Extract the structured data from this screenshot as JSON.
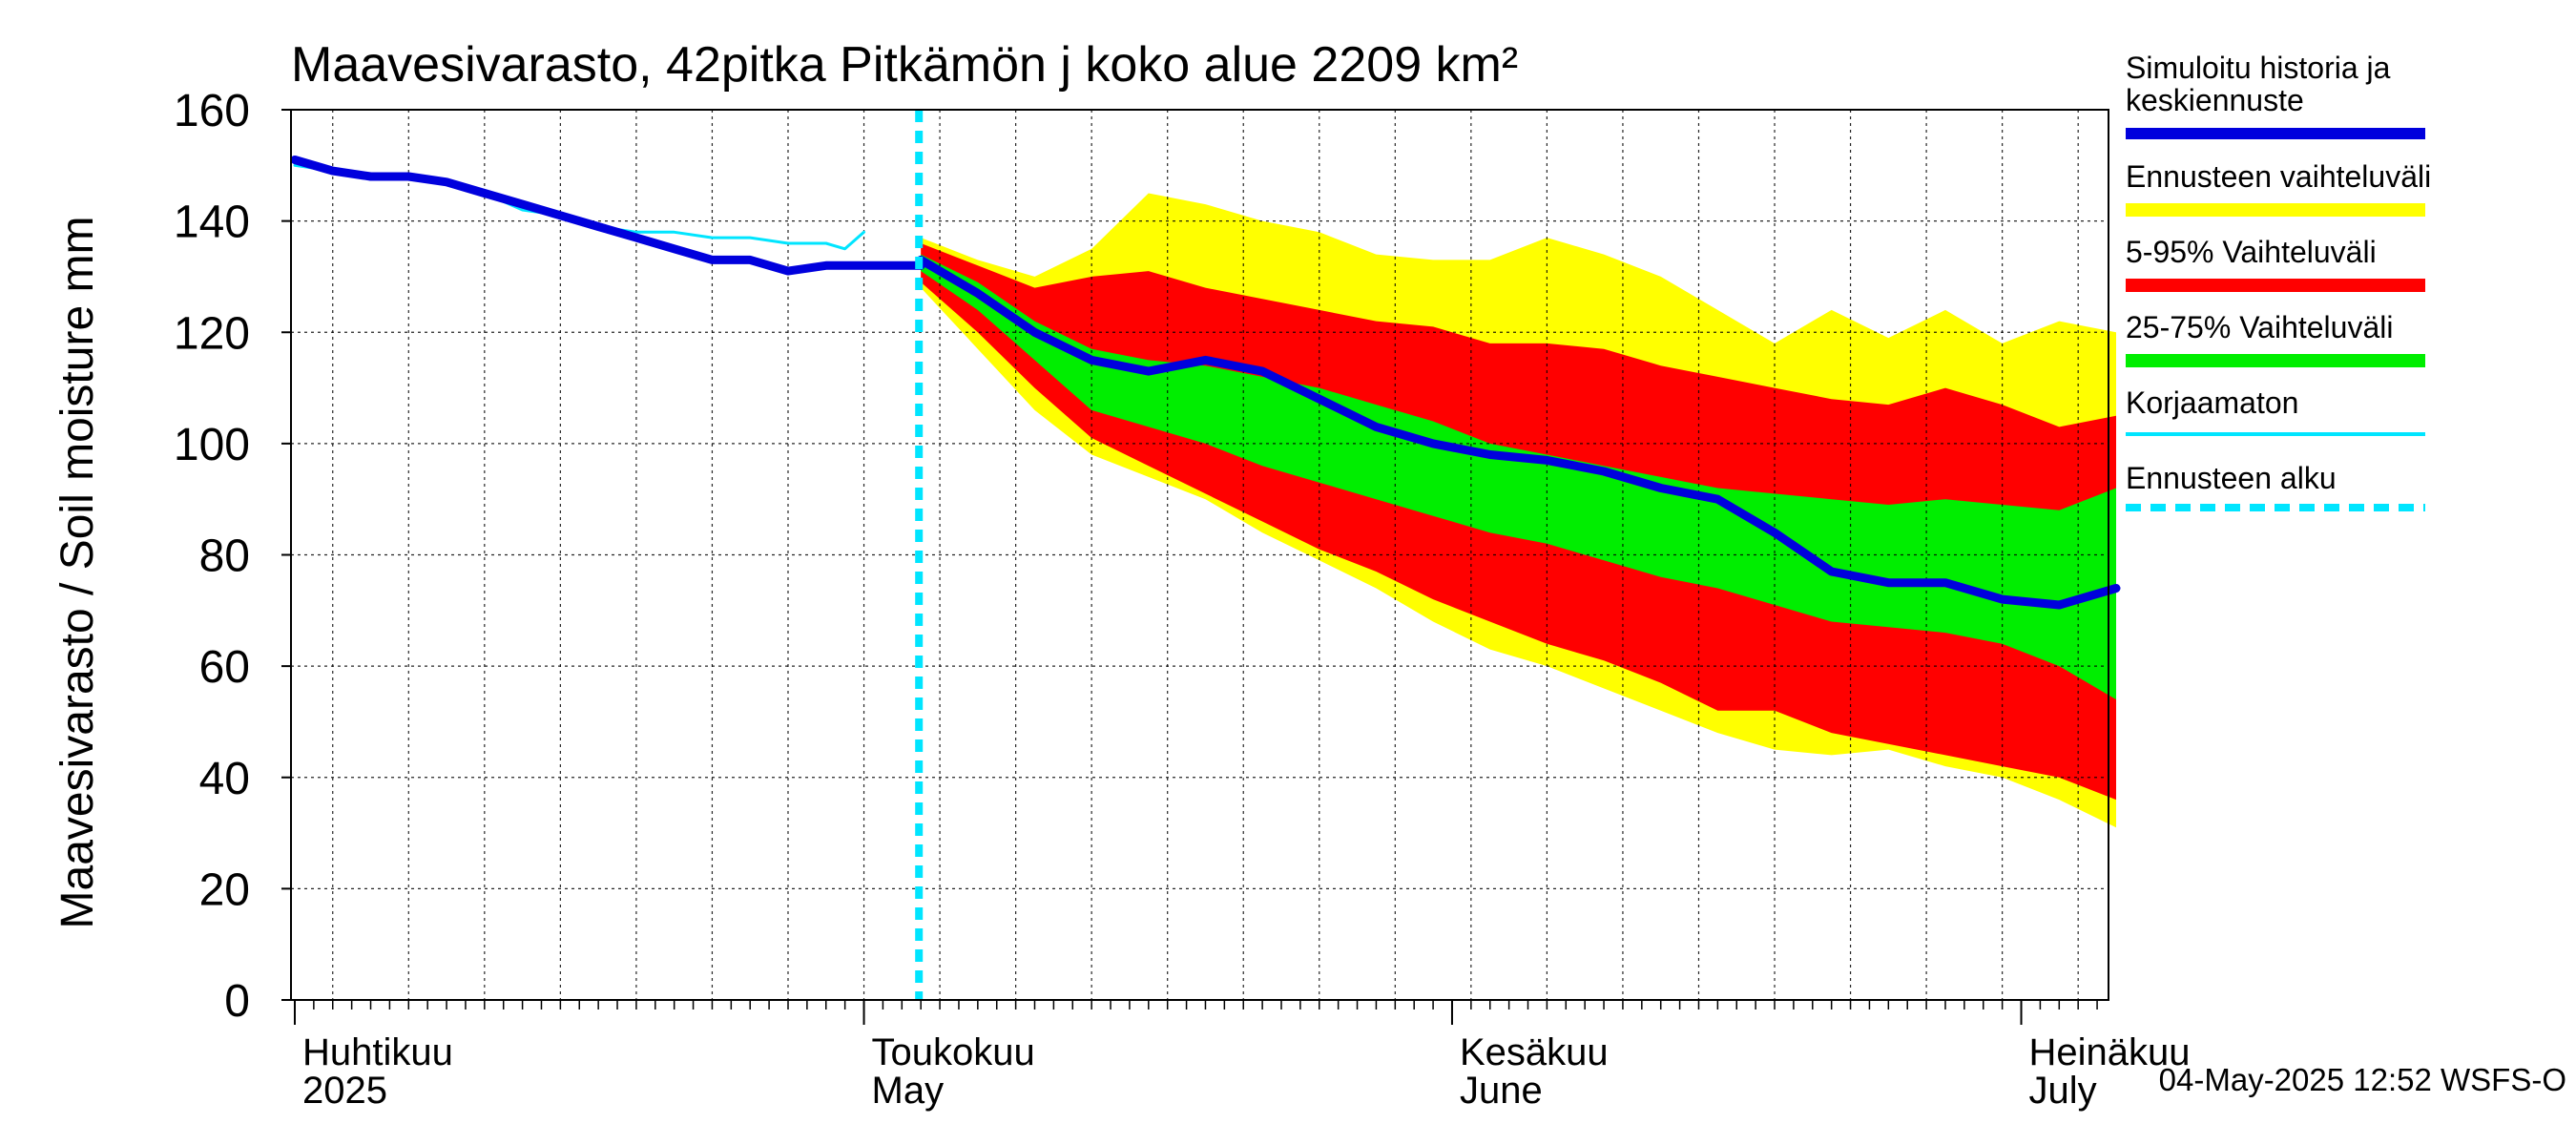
{
  "chart_data": {
    "type": "area",
    "title": "Maavesivarasto, 42pitka Pitkämön j koko alue 2209 km²",
    "ylabel": "Maavesivarasto / Soil moisture   mm",
    "ylim": [
      0,
      160
    ],
    "yticks": [
      0,
      20,
      40,
      60,
      80,
      100,
      120,
      140,
      160
    ],
    "x_range_days": [
      -30.2,
      65.6
    ],
    "x_unit": "days since 2025-05-01",
    "forecast_start_day": 2.9,
    "month_ticks": [
      {
        "day": -30,
        "line1": "Huhtikuu",
        "line2": "2025"
      },
      {
        "day": 0,
        "line1": "Toukokuu",
        "line2": "May"
      },
      {
        "day": 31,
        "line1": "Kesäkuu",
        "line2": "June"
      },
      {
        "day": 61,
        "line1": "Heinäkuu",
        "line2": "July"
      }
    ],
    "legend": [
      {
        "label": "Simuloitu historia ja keskiennuste",
        "color": "#0000dd",
        "style": "thick"
      },
      {
        "label": "Ennusteen vaihteluväli",
        "color": "#ffff00",
        "style": "band"
      },
      {
        "label": "5-95% Vaihteluväli",
        "color": "#ff0000",
        "style": "band"
      },
      {
        "label": "25-75% Vaihteluväli",
        "color": "#00ee00",
        "style": "band"
      },
      {
        "label": "Korjaamaton",
        "color": "#00e5ff",
        "style": "thin"
      },
      {
        "label": "Ennusteen alku",
        "color": "#00e5ff",
        "style": "dashed"
      }
    ],
    "footer": "04-May-2025 12:52 WSFS-O",
    "colors": {
      "yellow": "#ffff00",
      "red": "#ff0000",
      "green": "#00ee00",
      "blue": "#0000dd",
      "cyan": "#00e5ff"
    },
    "series": {
      "history": {
        "name": "Simuloitu historia ja keskiennuste (historia)",
        "x": [
          -30,
          -28,
          -26,
          -24,
          -22,
          -20,
          -18,
          -16,
          -14,
          -12,
          -10,
          -8,
          -6,
          -4,
          -2,
          0,
          2,
          3
        ],
        "y": [
          151,
          149,
          148,
          148,
          147,
          145,
          143,
          141,
          139,
          137,
          135,
          133,
          133,
          131,
          132,
          132,
          132,
          132
        ]
      },
      "uncorrected": {
        "name": "Korjaamaton",
        "x": [
          -30,
          -28,
          -26,
          -24,
          -22,
          -20,
          -18,
          -16,
          -14,
          -12,
          -10,
          -8,
          -6,
          -4,
          -2,
          -1,
          0
        ],
        "y": [
          150,
          149,
          148,
          148,
          147,
          145,
          142,
          141,
          139,
          138,
          138,
          137,
          137,
          136,
          136,
          135,
          138
        ]
      },
      "forecast_x": [
        3,
        6,
        9,
        12,
        15,
        18,
        21,
        24,
        27,
        30,
        33,
        36,
        39,
        42,
        45,
        48,
        51,
        54,
        57,
        60,
        63,
        66
      ],
      "ensemble_max": [
        137,
        133,
        130,
        135,
        145,
        143,
        140,
        138,
        134,
        133,
        133,
        137,
        134,
        130,
        124,
        118,
        124,
        119,
        124,
        118,
        122,
        120
      ],
      "p95": [
        136,
        132,
        128,
        130,
        131,
        128,
        126,
        124,
        122,
        121,
        118,
        118,
        117,
        114,
        112,
        110,
        108,
        107,
        110,
        107,
        103,
        105
      ],
      "p75": [
        134,
        129,
        122,
        117,
        115,
        114,
        112,
        110,
        107,
        104,
        100,
        98,
        96,
        94,
        92,
        91,
        90,
        89,
        90,
        89,
        88,
        92
      ],
      "median": [
        133,
        127,
        120,
        115,
        113,
        115,
        113,
        108,
        103,
        100,
        98,
        97,
        95,
        92,
        90,
        84,
        77,
        75,
        75,
        72,
        71,
        74
      ],
      "p25": [
        131,
        124,
        115,
        106,
        103,
        100,
        96,
        93,
        90,
        87,
        84,
        82,
        79,
        76,
        74,
        71,
        68,
        67,
        66,
        64,
        60,
        54
      ],
      "p5": [
        129,
        120,
        110,
        101,
        96,
        91,
        86,
        81,
        77,
        72,
        68,
        64,
        61,
        57,
        52,
        52,
        48,
        46,
        44,
        42,
        40,
        36
      ],
      "ensemble_min": [
        128,
        117,
        106,
        98,
        94,
        90,
        84,
        79,
        74,
        68,
        63,
        60,
        56,
        52,
        48,
        45,
        44,
        45,
        42,
        40,
        36,
        31
      ]
    }
  }
}
